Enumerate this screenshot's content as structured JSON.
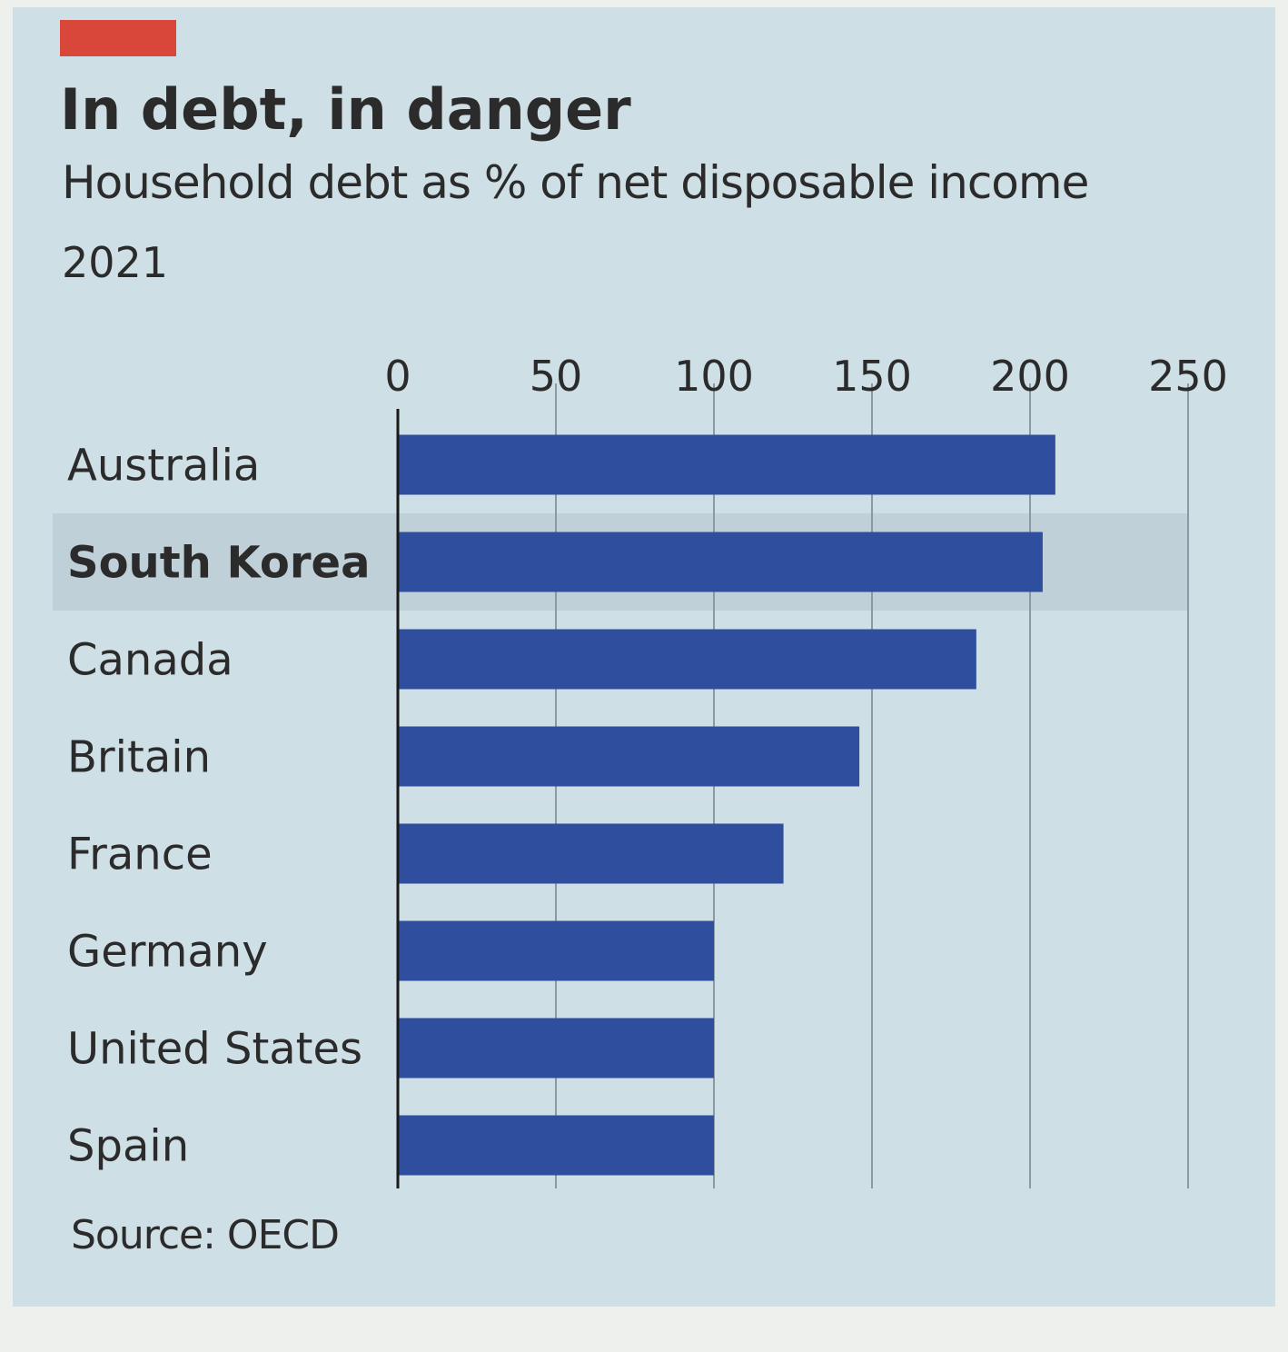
{
  "colors": {
    "accent": "#d9463a",
    "bar": "#2f4f9e",
    "highlight": "#bfd0d9",
    "gridline": "#8a9aa3",
    "axis": "#1a1a1a"
  },
  "chart_data": {
    "type": "bar",
    "orientation": "horizontal",
    "title": "In debt, in danger",
    "subtitle": "Household debt as % of net disposable income",
    "period": "2021",
    "source": "Source: OECD",
    "categories": [
      "Australia",
      "South Korea",
      "Canada",
      "Britain",
      "France",
      "Germany",
      "United States",
      "Spain"
    ],
    "values": [
      208,
      204,
      183,
      146,
      122,
      100,
      100,
      100
    ],
    "highlighted_category": "South Korea",
    "xlim": [
      0,
      250
    ],
    "xticks": [
      0,
      50,
      100,
      150,
      200,
      250
    ],
    "xtick_labels": [
      "0",
      "50",
      "100",
      "150",
      "200",
      "250"
    ],
    "axis_position": "top",
    "grid": true,
    "xlabel": "",
    "ylabel": ""
  }
}
